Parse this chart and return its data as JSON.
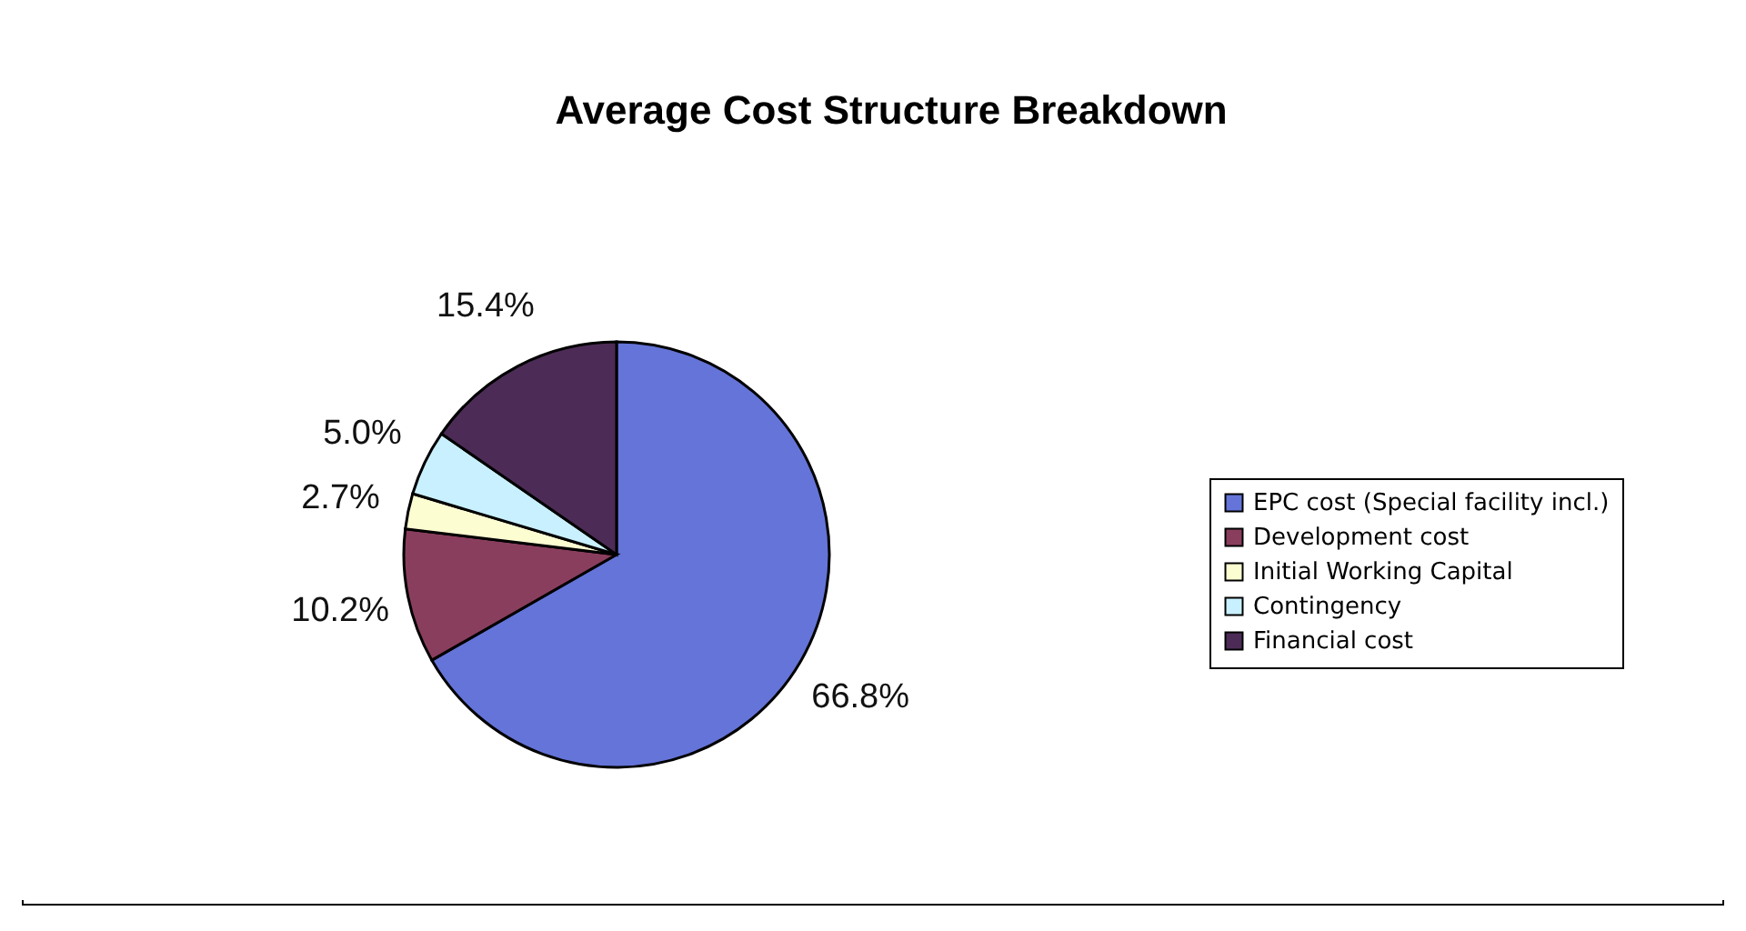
{
  "chart_data": {
    "type": "pie",
    "title": "Average Cost Structure Breakdown",
    "categories": [
      "EPC cost (Special facility incl.)",
      "Development cost",
      "Initial Working Capital",
      "Contingency",
      "Financial cost"
    ],
    "values": [
      66.8,
      10.2,
      2.7,
      5.0,
      15.4
    ],
    "value_labels": [
      "66.8%",
      "10.2%",
      "2.7%",
      "5.0%",
      "15.4%"
    ],
    "colors": [
      "#6474d8",
      "#8a3e5e",
      "#fdfdd2",
      "#c8f0ff",
      "#4c2c56"
    ],
    "legend": "right"
  }
}
